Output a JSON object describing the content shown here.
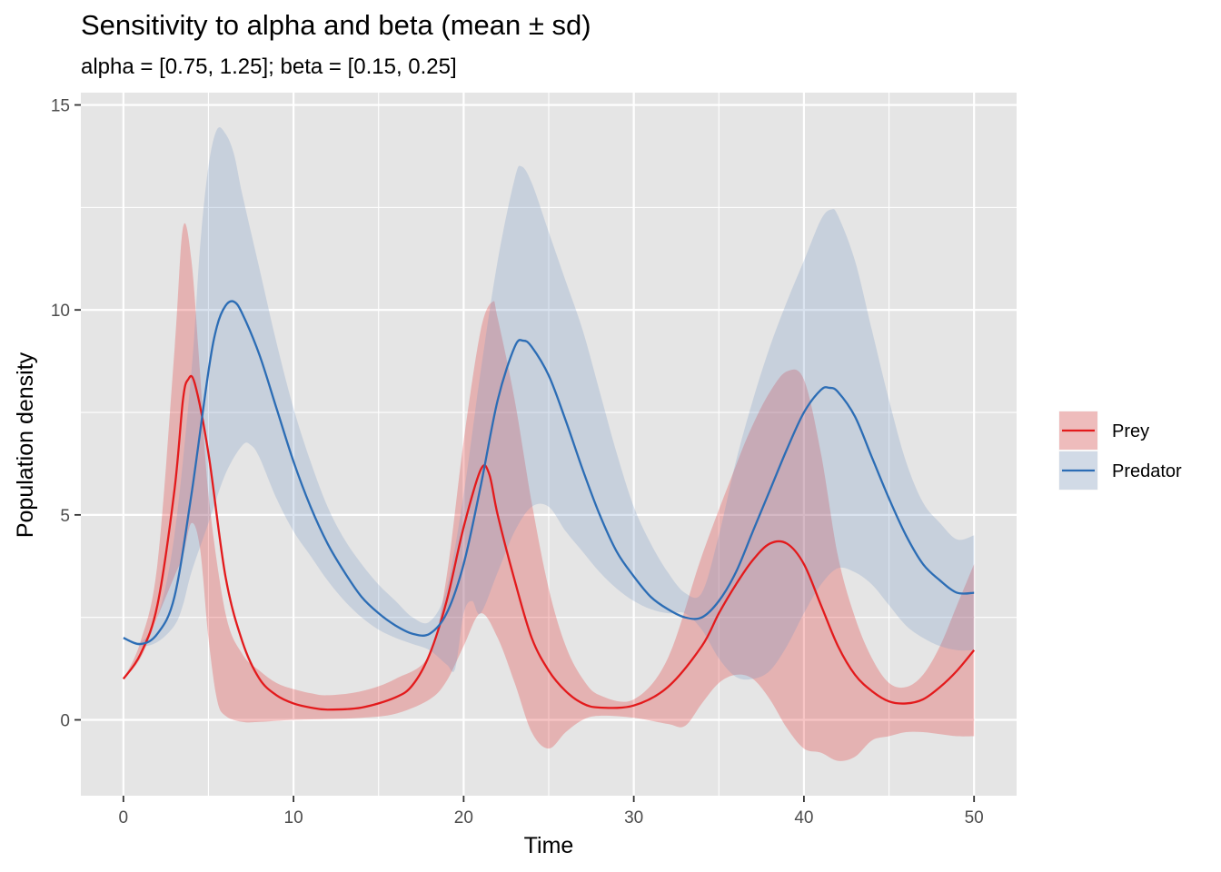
{
  "chart_data": {
    "type": "line",
    "title": "Sensitivity to alpha and beta (mean ± sd)",
    "subtitle": "alpha = [0.75, 1.25]; beta = [0.15, 0.25]",
    "xlabel": "Time",
    "ylabel": "Population density",
    "xlim": [
      -2.5,
      52.5
    ],
    "ylim": [
      -1.85,
      15.3
    ],
    "x_ticks": [
      0,
      10,
      20,
      30,
      40,
      50
    ],
    "y_ticks": [
      0,
      5,
      10,
      15
    ],
    "grid": true,
    "legend_position": "right",
    "colors": {
      "panel": "#e5e5e5",
      "grid": "#ffffff"
    },
    "series": [
      {
        "name": "Prey",
        "color": "#e31a1c",
        "band_color": "#e31a1c",
        "points": [
          [
            0,
            1.0
          ],
          [
            1,
            1.6
          ],
          [
            2,
            2.8
          ],
          [
            3,
            5.6
          ],
          [
            3.5,
            7.8
          ],
          [
            3.8,
            8.3
          ],
          [
            4.2,
            8.2
          ],
          [
            5,
            6.5
          ],
          [
            6,
            3.5
          ],
          [
            7,
            1.9
          ],
          [
            8,
            1.0
          ],
          [
            9,
            0.6
          ],
          [
            10,
            0.4
          ],
          [
            11,
            0.3
          ],
          [
            12,
            0.25
          ],
          [
            14,
            0.3
          ],
          [
            16,
            0.55
          ],
          [
            17,
            0.85
          ],
          [
            18,
            1.6
          ],
          [
            19,
            2.9
          ],
          [
            20,
            4.7
          ],
          [
            21,
            6.1
          ],
          [
            21.5,
            6.0
          ],
          [
            22,
            5.0
          ],
          [
            23,
            3.4
          ],
          [
            24,
            2.0
          ],
          [
            25,
            1.2
          ],
          [
            26,
            0.7
          ],
          [
            27,
            0.4
          ],
          [
            28,
            0.3
          ],
          [
            30,
            0.35
          ],
          [
            32,
            0.8
          ],
          [
            34,
            1.8
          ],
          [
            35,
            2.6
          ],
          [
            36,
            3.3
          ],
          [
            37,
            3.9
          ],
          [
            38,
            4.3
          ],
          [
            39,
            4.3
          ],
          [
            40,
            3.8
          ],
          [
            41,
            2.8
          ],
          [
            42,
            1.8
          ],
          [
            43,
            1.1
          ],
          [
            44,
            0.7
          ],
          [
            45,
            0.45
          ],
          [
            46,
            0.4
          ],
          [
            47,
            0.5
          ],
          [
            48,
            0.8
          ],
          [
            49,
            1.2
          ],
          [
            50,
            1.7
          ]
        ],
        "upper": [
          [
            0,
            1.0
          ],
          [
            1,
            1.9
          ],
          [
            2,
            3.8
          ],
          [
            3,
            9.0
          ],
          [
            3.5,
            12.0
          ],
          [
            4,
            11.2
          ],
          [
            4.5,
            8.5
          ],
          [
            5,
            5.5
          ],
          [
            6,
            2.6
          ],
          [
            7,
            1.6
          ],
          [
            8,
            1.2
          ],
          [
            9,
            0.9
          ],
          [
            10,
            0.75
          ],
          [
            11,
            0.65
          ],
          [
            12,
            0.6
          ],
          [
            14,
            0.7
          ],
          [
            16,
            1.0
          ],
          [
            18,
            1.6
          ],
          [
            19,
            3.5
          ],
          [
            20,
            6.8
          ],
          [
            21,
            9.5
          ],
          [
            21.7,
            10.2
          ],
          [
            22,
            9.8
          ],
          [
            23,
            7.8
          ],
          [
            24,
            5.3
          ],
          [
            25,
            3.2
          ],
          [
            26,
            1.8
          ],
          [
            27,
            1.0
          ],
          [
            28,
            0.6
          ],
          [
            30,
            0.5
          ],
          [
            32,
            1.5
          ],
          [
            34,
            4.0
          ],
          [
            36,
            6.2
          ],
          [
            37,
            7.2
          ],
          [
            38,
            8.0
          ],
          [
            39,
            8.5
          ],
          [
            40,
            8.3
          ],
          [
            41,
            6.5
          ],
          [
            42,
            4.0
          ],
          [
            43,
            2.5
          ],
          [
            44,
            1.5
          ],
          [
            45,
            0.9
          ],
          [
            46,
            0.8
          ],
          [
            47,
            1.1
          ],
          [
            48,
            1.8
          ],
          [
            49,
            2.8
          ],
          [
            50,
            3.8
          ]
        ],
        "lower": [
          [
            0,
            1.0
          ],
          [
            1,
            1.5
          ],
          [
            2,
            2.5
          ],
          [
            3,
            3.5
          ],
          [
            3.5,
            4.0
          ],
          [
            4,
            4.8
          ],
          [
            4.5,
            4.2
          ],
          [
            5,
            2.0
          ],
          [
            5.5,
            0.5
          ],
          [
            6,
            0.1
          ],
          [
            7,
            -0.05
          ],
          [
            8,
            -0.05
          ],
          [
            10,
            0.0
          ],
          [
            12,
            0.02
          ],
          [
            14,
            0.05
          ],
          [
            16,
            0.15
          ],
          [
            18,
            0.5
          ],
          [
            19,
            0.95
          ],
          [
            20,
            1.8
          ],
          [
            21,
            2.6
          ],
          [
            22,
            2.0
          ],
          [
            23,
            0.9
          ],
          [
            24,
            -0.3
          ],
          [
            25,
            -0.7
          ],
          [
            26,
            -0.3
          ],
          [
            27,
            0.0
          ],
          [
            28,
            0.1
          ],
          [
            30,
            0.05
          ],
          [
            32,
            -0.1
          ],
          [
            33,
            -0.15
          ],
          [
            34,
            0.4
          ],
          [
            35,
            0.9
          ],
          [
            36,
            1.1
          ],
          [
            37,
            1.0
          ],
          [
            38,
            0.5
          ],
          [
            39,
            -0.2
          ],
          [
            40,
            -0.7
          ],
          [
            41,
            -0.8
          ],
          [
            42,
            -1.0
          ],
          [
            43,
            -0.9
          ],
          [
            44,
            -0.5
          ],
          [
            45,
            -0.4
          ],
          [
            46,
            -0.3
          ],
          [
            47,
            -0.3
          ],
          [
            48,
            -0.35
          ],
          [
            49,
            -0.4
          ],
          [
            50,
            -0.4
          ]
        ]
      },
      {
        "name": "Predator",
        "color": "#2c6db5",
        "band_color": "#6e94c4",
        "points": [
          [
            0,
            2.0
          ],
          [
            1,
            1.85
          ],
          [
            2,
            2.1
          ],
          [
            3,
            3.0
          ],
          [
            4,
            5.5
          ],
          [
            5,
            8.5
          ],
          [
            5.5,
            9.6
          ],
          [
            6,
            10.1
          ],
          [
            6.5,
            10.2
          ],
          [
            7,
            9.9
          ],
          [
            8,
            8.9
          ],
          [
            9,
            7.6
          ],
          [
            10,
            6.3
          ],
          [
            11,
            5.2
          ],
          [
            12,
            4.3
          ],
          [
            13,
            3.6
          ],
          [
            14,
            3.0
          ],
          [
            15,
            2.6
          ],
          [
            16,
            2.3
          ],
          [
            17,
            2.1
          ],
          [
            18,
            2.1
          ],
          [
            19,
            2.6
          ],
          [
            20,
            3.8
          ],
          [
            21,
            5.7
          ],
          [
            22,
            7.8
          ],
          [
            23,
            9.1
          ],
          [
            23.5,
            9.25
          ],
          [
            24,
            9.1
          ],
          [
            25,
            8.4
          ],
          [
            26,
            7.3
          ],
          [
            27,
            6.1
          ],
          [
            28,
            5.0
          ],
          [
            29,
            4.1
          ],
          [
            30,
            3.5
          ],
          [
            31,
            3.0
          ],
          [
            32,
            2.7
          ],
          [
            33,
            2.5
          ],
          [
            34,
            2.5
          ],
          [
            35,
            2.9
          ],
          [
            36,
            3.6
          ],
          [
            37,
            4.6
          ],
          [
            38,
            5.6
          ],
          [
            39,
            6.6
          ],
          [
            40,
            7.5
          ],
          [
            41,
            8.05
          ],
          [
            41.5,
            8.1
          ],
          [
            42,
            8.0
          ],
          [
            43,
            7.4
          ],
          [
            44,
            6.4
          ],
          [
            45,
            5.4
          ],
          [
            46,
            4.5
          ],
          [
            47,
            3.8
          ],
          [
            48,
            3.4
          ],
          [
            49,
            3.1
          ],
          [
            50,
            3.1
          ]
        ],
        "upper": [
          [
            0,
            2.0
          ],
          [
            1,
            1.9
          ],
          [
            2,
            2.5
          ],
          [
            3,
            4.5
          ],
          [
            4,
            8.5
          ],
          [
            4.5,
            11.5
          ],
          [
            5,
            13.5
          ],
          [
            5.5,
            14.4
          ],
          [
            6,
            14.3
          ],
          [
            6.5,
            13.8
          ],
          [
            7,
            12.8
          ],
          [
            8,
            11.0
          ],
          [
            9,
            9.2
          ],
          [
            10,
            7.6
          ],
          [
            11,
            6.3
          ],
          [
            12,
            5.2
          ],
          [
            13,
            4.4
          ],
          [
            14,
            3.8
          ],
          [
            15,
            3.3
          ],
          [
            16,
            2.9
          ],
          [
            17,
            2.5
          ],
          [
            18,
            2.4
          ],
          [
            19,
            3.2
          ],
          [
            20,
            5.5
          ],
          [
            21,
            8.5
          ],
          [
            22,
            11.2
          ],
          [
            23,
            13.2
          ],
          [
            23.4,
            13.5
          ],
          [
            24,
            13.1
          ],
          [
            25,
            11.9
          ],
          [
            26,
            10.7
          ],
          [
            27,
            9.5
          ],
          [
            28,
            8.0
          ],
          [
            29,
            6.5
          ],
          [
            30,
            5.2
          ],
          [
            31,
            4.3
          ],
          [
            32,
            3.6
          ],
          [
            33,
            3.1
          ],
          [
            34,
            3.1
          ],
          [
            35,
            4.5
          ],
          [
            36,
            6.3
          ],
          [
            37,
            7.8
          ],
          [
            38,
            9.1
          ],
          [
            39,
            10.2
          ],
          [
            40,
            11.2
          ],
          [
            41,
            12.2
          ],
          [
            41.6,
            12.45
          ],
          [
            42,
            12.3
          ],
          [
            43,
            11.2
          ],
          [
            44,
            9.5
          ],
          [
            45,
            7.8
          ],
          [
            46,
            6.3
          ],
          [
            47,
            5.3
          ],
          [
            48,
            4.8
          ],
          [
            49,
            4.4
          ],
          [
            50,
            4.5
          ]
        ],
        "lower": [
          [
            0,
            2.0
          ],
          [
            1,
            1.8
          ],
          [
            2,
            1.9
          ],
          [
            3,
            2.3
          ],
          [
            3.5,
            2.8
          ],
          [
            4,
            3.6
          ],
          [
            5,
            4.8
          ],
          [
            6,
            6.0
          ],
          [
            7,
            6.7
          ],
          [
            7.5,
            6.7
          ],
          [
            8,
            6.4
          ],
          [
            9,
            5.4
          ],
          [
            10,
            4.6
          ],
          [
            11,
            4.0
          ],
          [
            12,
            3.4
          ],
          [
            13,
            2.9
          ],
          [
            14,
            2.5
          ],
          [
            15,
            2.2
          ],
          [
            16,
            2.0
          ],
          [
            17,
            1.85
          ],
          [
            18,
            1.7
          ],
          [
            19,
            1.35
          ],
          [
            19.5,
            1.25
          ],
          [
            20,
            2.6
          ],
          [
            20.5,
            2.9
          ],
          [
            21,
            2.6
          ],
          [
            22,
            3.6
          ],
          [
            23,
            4.6
          ],
          [
            24,
            5.2
          ],
          [
            25,
            5.2
          ],
          [
            26,
            4.6
          ],
          [
            27,
            4.1
          ],
          [
            28,
            3.6
          ],
          [
            29,
            3.2
          ],
          [
            30,
            2.9
          ],
          [
            31,
            2.7
          ],
          [
            32,
            2.6
          ],
          [
            33,
            2.6
          ],
          [
            34,
            2.2
          ],
          [
            35,
            1.5
          ],
          [
            36,
            1.05
          ],
          [
            37,
            1.0
          ],
          [
            38,
            1.2
          ],
          [
            39,
            1.8
          ],
          [
            40,
            2.6
          ],
          [
            41,
            3.3
          ],
          [
            42,
            3.7
          ],
          [
            43,
            3.6
          ],
          [
            44,
            3.3
          ],
          [
            45,
            2.8
          ],
          [
            46,
            2.3
          ],
          [
            47,
            2.0
          ],
          [
            48,
            1.8
          ],
          [
            49,
            1.7
          ],
          [
            50,
            1.7
          ]
        ]
      }
    ]
  }
}
